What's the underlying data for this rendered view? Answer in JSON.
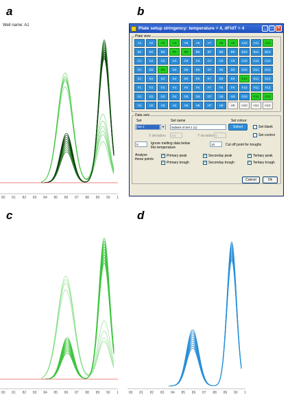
{
  "panels": {
    "a": {
      "letter": "a",
      "well_name": "Well name: A1"
    },
    "b": {
      "letter": "b"
    },
    "c": {
      "letter": "c"
    },
    "d": {
      "letter": "d"
    }
  },
  "axis_ticks": [
    "80",
    "81",
    "82",
    "83",
    "84",
    "85",
    "86",
    "87",
    "88",
    "89",
    "90",
    "1"
  ],
  "dialog": {
    "title": "Plate setup stringency: temperature = 4, dF/dT = 4",
    "minimize": "_",
    "maximize": "□",
    "close": "×",
    "plate_view_legend": "Plate view",
    "rows": [
      "A",
      "B",
      "C",
      "D",
      "E",
      "F",
      "G",
      "H"
    ],
    "cols": [
      "1",
      "2",
      "3",
      "4",
      "5",
      "6",
      "7",
      "8",
      "9",
      "10",
      "11",
      "12"
    ],
    "wells": [
      [
        "blue",
        "blue",
        "green",
        "green",
        "blue",
        "blue",
        "blue",
        "green",
        "green",
        "blue",
        "blue",
        "green"
      ],
      [
        "blue",
        "blue",
        "blue",
        "green",
        "green",
        "blue",
        "blue",
        "blue",
        "blue",
        "blue",
        "blue",
        "blue"
      ],
      [
        "blue",
        "blue",
        "blue",
        "blue",
        "blue",
        "blue",
        "blue",
        "blue",
        "blue",
        "blue",
        "blue",
        "blue"
      ],
      [
        "blue",
        "blue",
        "green",
        "blue",
        "blue",
        "blue",
        "blue",
        "blue",
        "blue",
        "blue",
        "blue",
        "blue"
      ],
      [
        "blue",
        "blue",
        "blue",
        "blue",
        "blue",
        "blue",
        "blue",
        "blue",
        "blue",
        "green",
        "blue",
        "blue"
      ],
      [
        "blue",
        "blue",
        "blue",
        "blue",
        "blue",
        "blue",
        "blue",
        "blue",
        "blue",
        "blue",
        "blue",
        "blue"
      ],
      [
        "blue",
        "blue",
        "blue",
        "blue",
        "blue",
        "blue",
        "blue",
        "blue",
        "blue",
        "blue",
        "green",
        "green"
      ],
      [
        "blue",
        "blue",
        "blue",
        "blue",
        "blue",
        "blue",
        "blue",
        "blue",
        "off",
        "off",
        "off",
        "off"
      ]
    ],
    "data_sets_legend": "Data sets",
    "set_header": "Set",
    "set_name_header": "Set name",
    "set_colour_header": "Set colour",
    "set_value": "Set 2",
    "set_name_value": "Subset of Set 1 (1)",
    "select_button": "Select",
    "set_blank": "Set blank",
    "set_control": "Set control",
    "x_deviation_label": "X deviation",
    "x_deviation_value": "0.5",
    "y_deviation_label": "Y deviation",
    "y_deviation_value": "5",
    "ignore_value": "0",
    "ignore_label_1": "Ignore melting data below",
    "ignore_label_2": "this temperature",
    "cutoff_value": "10",
    "cutoff_label": "Cut off point for troughs",
    "analyse_label_1": "Analyse",
    "analyse_label_2": "these points",
    "primary_peak": "Primary peak",
    "primary_trough": "Primary trough",
    "secondary_peak": "Seconday peak",
    "secondary_trough": "Seconday trough",
    "tertiary_peak": "Tertiary peak",
    "tertiary_trough": "Tertiary trough",
    "cancel_button": "Cancel",
    "ok_button": "Ok"
  },
  "colors": {
    "green": "#3ec43e",
    "dark_green": "#0b3d0b",
    "blue": "#2a8fd6",
    "threshold": "#e05a5a"
  }
}
